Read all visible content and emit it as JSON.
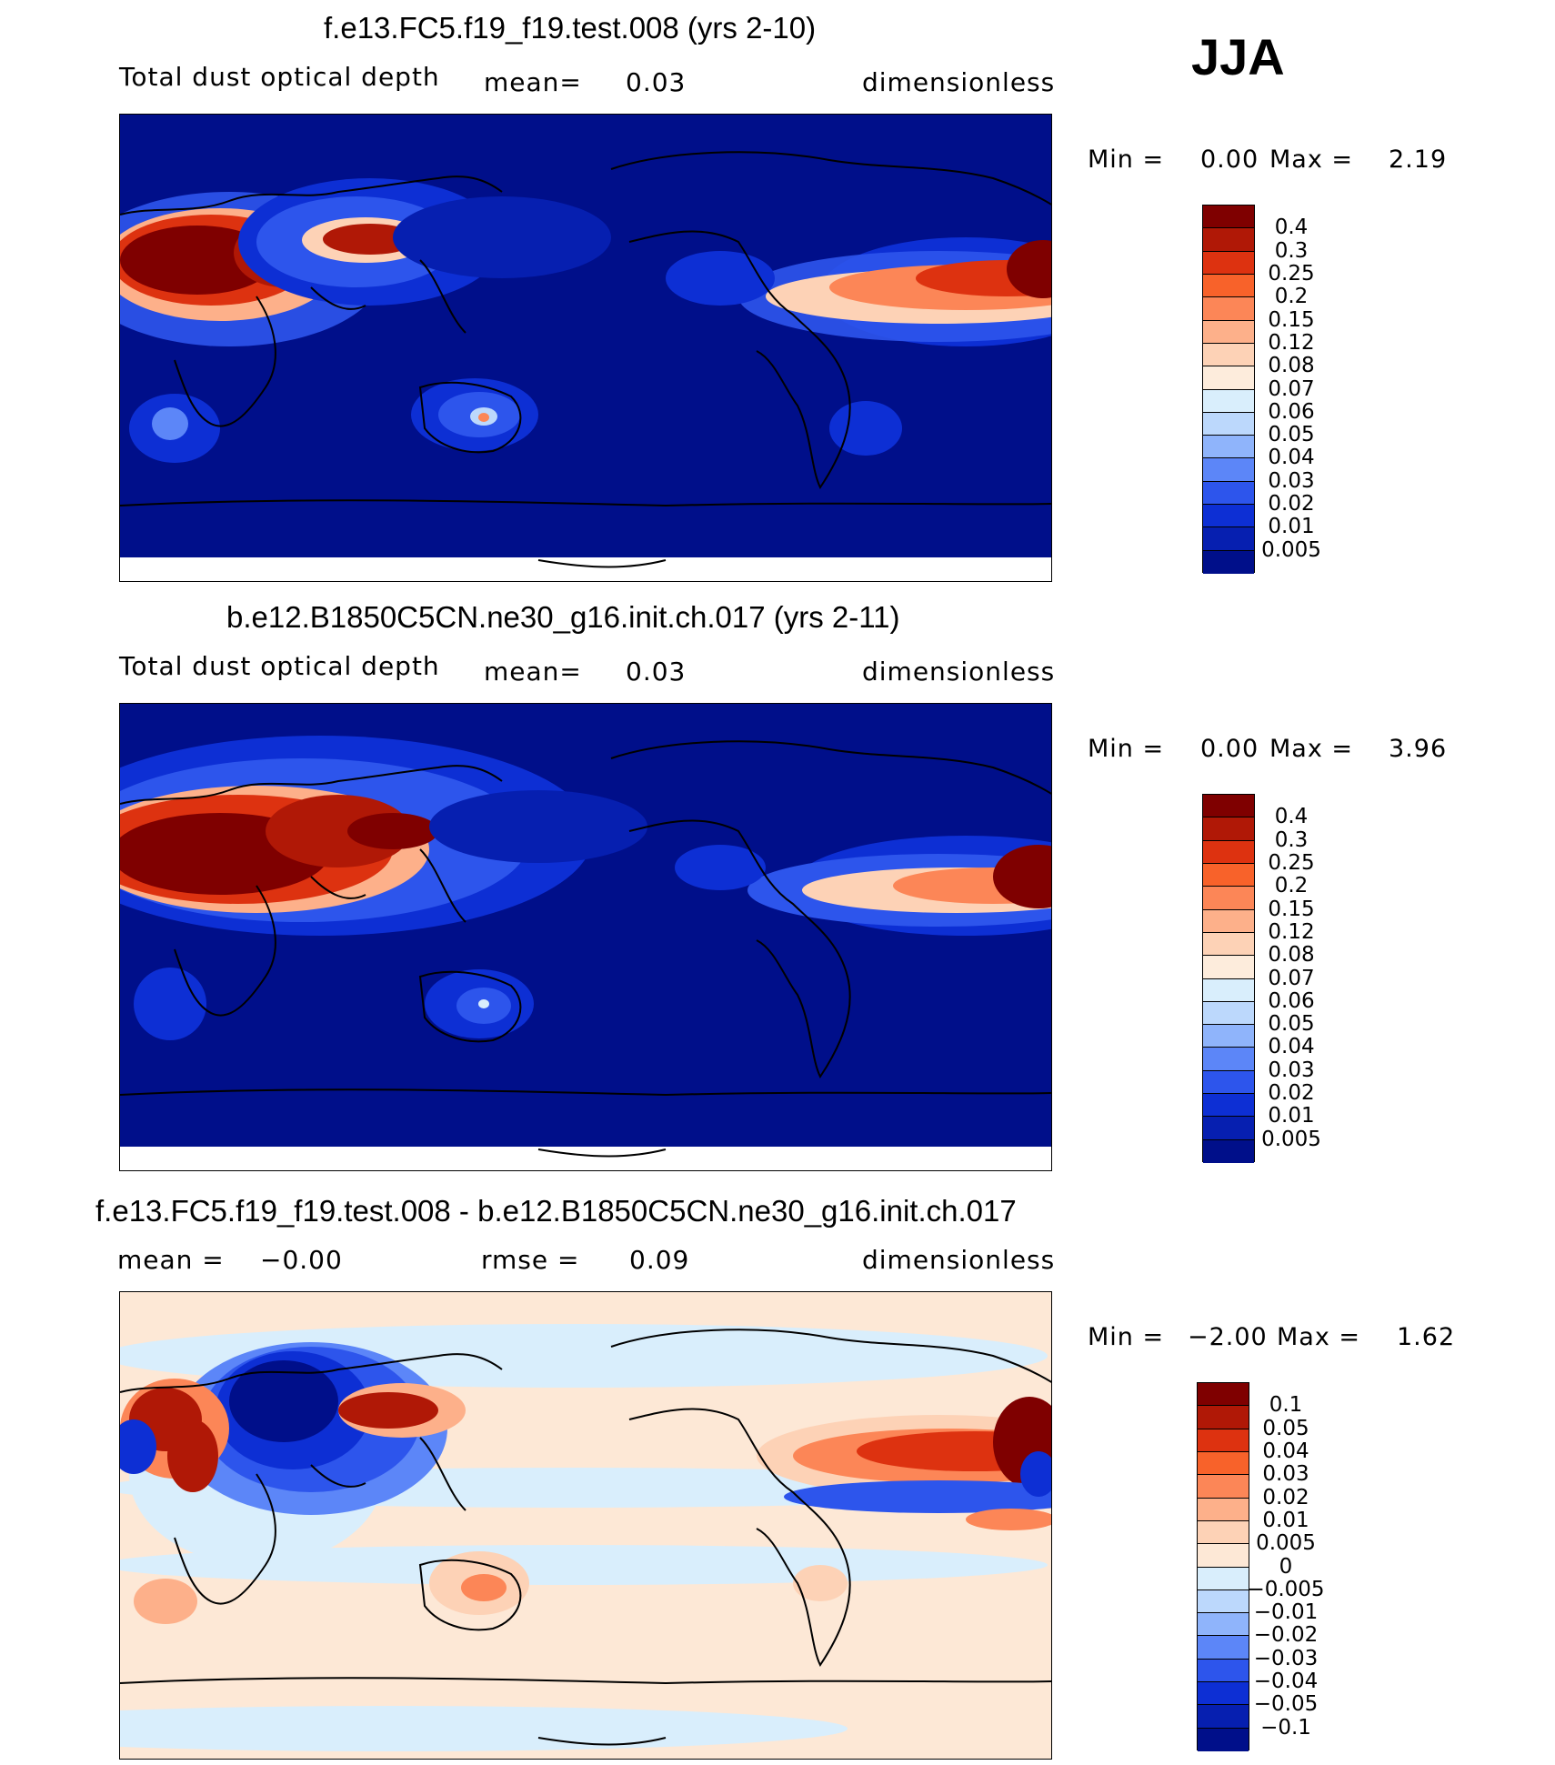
{
  "season": "JJA",
  "panels": [
    {
      "title": "f.e13.FC5.f19_f19.test.008 (yrs 2-10)",
      "variable": "Total dust optical depth",
      "stat_label": "mean=",
      "stat_value": "0.03",
      "units": "dimensionless",
      "min_label": "Min =",
      "min_value": "0.00",
      "max_label": "Max =",
      "max_value": "2.19",
      "colorbar": {
        "labels": [
          "0.4",
          "0.3",
          "0.25",
          "0.2",
          "0.15",
          "0.12",
          "0.08",
          "0.07",
          "0.06",
          "0.05",
          "0.04",
          "0.03",
          "0.02",
          "0.01",
          "0.005"
        ],
        "colors": [
          "#7f0000",
          "#b01806",
          "#dd3210",
          "#f8622a",
          "#fc8657",
          "#fdb08a",
          "#fdd2b6",
          "#fdecdc",
          "#d9eefc",
          "#bcd8fc",
          "#8fb4fb",
          "#5c86f8",
          "#2d55ec",
          "#0d2fd4",
          "#061fb0",
          "#000f8a"
        ]
      }
    },
    {
      "title": "b.e12.B1850C5CN.ne30_g16.init.ch.017 (yrs 2-11)",
      "variable": "Total dust optical depth",
      "stat_label": "mean=",
      "stat_value": "0.03",
      "units": "dimensionless",
      "min_label": "Min =",
      "min_value": "0.00",
      "max_label": "Max =",
      "max_value": "3.96",
      "colorbar": {
        "labels": [
          "0.4",
          "0.3",
          "0.25",
          "0.2",
          "0.15",
          "0.12",
          "0.08",
          "0.07",
          "0.06",
          "0.05",
          "0.04",
          "0.03",
          "0.02",
          "0.01",
          "0.005"
        ],
        "colors": [
          "#7f0000",
          "#b01806",
          "#dd3210",
          "#f8622a",
          "#fc8657",
          "#fdb08a",
          "#fdd2b6",
          "#fdecdc",
          "#d9eefc",
          "#bcd8fc",
          "#8fb4fb",
          "#5c86f8",
          "#2d55ec",
          "#0d2fd4",
          "#061fb0",
          "#000f8a"
        ]
      }
    },
    {
      "title": "f.e13.FC5.f19_f19.test.008 - b.e12.B1850C5CN.ne30_g16.init.ch.017",
      "mean_label": "mean =",
      "mean_value": "−0.00",
      "rmse_label": "rmse =",
      "rmse_value": "0.09",
      "units": "dimensionless",
      "min_label": "Min =",
      "min_value": "−2.00",
      "max_label": "Max =",
      "max_value": "1.62",
      "colorbar": {
        "labels": [
          "0.1",
          "0.05",
          "0.04",
          "0.03",
          "0.02",
          "0.01",
          "0.005",
          "0",
          "−0.005",
          "−0.01",
          "−0.02",
          "−0.03",
          "−0.04",
          "−0.05",
          "−0.1"
        ],
        "colors": [
          "#7f0000",
          "#b01806",
          "#dd3210",
          "#f8622a",
          "#fc8657",
          "#fdb08a",
          "#fdd2b6",
          "#fde8d6",
          "#d9eefc",
          "#bcd8fc",
          "#8fb4fb",
          "#5c86f8",
          "#2d55ec",
          "#0d2fd4",
          "#061fb0",
          "#000f8a"
        ]
      }
    }
  ]
}
